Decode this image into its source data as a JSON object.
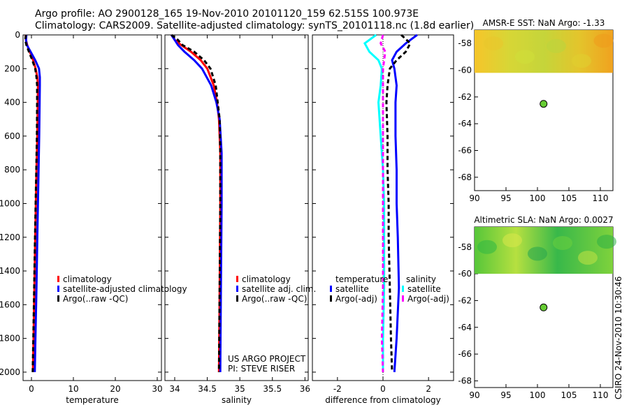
{
  "figure": {
    "title_line1": "Argo profile: AO 2900128_165 19-Nov-2010 20101120_159 62.515S 100.973E",
    "title_line2": "Climatology: CARS2009. Satellite-adjusted climatology: synTS_20101118.nc (1.8d earlier)",
    "credit": "CSIRO 24-Nov-2010 10:30:46",
    "project_line1": "US ARGO PROJECT",
    "project_line2": "PI: STEVE RISER"
  },
  "colors": {
    "climatology": "#ff0000",
    "satellite": "#0000ff",
    "argo": "#000000",
    "satellite_sal": "#00ffff",
    "argo_sal": "#ff00ff",
    "marker": "#66cc33"
  },
  "chart_data": [
    {
      "id": "temperature",
      "type": "line",
      "xlabel": "temperature",
      "xlim": [
        -2,
        31
      ],
      "ylim": [
        2050,
        0
      ],
      "xticks": [
        0,
        10,
        20,
        30
      ],
      "yticks": [
        0,
        200,
        400,
        600,
        800,
        1000,
        1200,
        1400,
        1600,
        1800,
        2000
      ],
      "legend": [
        "climatology",
        "satellite-adjusted climatology",
        "Argo(..raw -QC)"
      ],
      "legend_position": "lower-right",
      "series": [
        {
          "name": "climatology",
          "color": "#ff0000",
          "depth": [
            0,
            30,
            60,
            100,
            150,
            200,
            250,
            300,
            400,
            600,
            800,
            1000,
            1200,
            1500,
            1800,
            2000
          ],
          "values": [
            -1.4,
            -1.3,
            -1.0,
            -0.4,
            0.4,
            1.0,
            1.4,
            1.55,
            1.5,
            1.4,
            1.2,
            1.05,
            0.9,
            0.7,
            0.5,
            0.35
          ]
        },
        {
          "name": "satellite-adjusted climatology",
          "color": "#0000ff",
          "depth": [
            0,
            30,
            60,
            100,
            150,
            200,
            250,
            300,
            400,
            600,
            800,
            1000,
            1200,
            1500,
            1800,
            2000
          ],
          "values": [
            -1.2,
            -1.3,
            -1.1,
            -0.2,
            0.9,
            1.8,
            2.0,
            2.0,
            1.95,
            1.85,
            1.7,
            1.55,
            1.4,
            1.2,
            0.95,
            0.8
          ]
        },
        {
          "name": "Argo(..raw -QC)",
          "color": "#000000",
          "depth": [
            0,
            30,
            60,
            100,
            150,
            200,
            250,
            300,
            400,
            600,
            800,
            1000,
            1200,
            1500,
            1800,
            2000
          ],
          "values": [
            -1.3,
            -1.5,
            -1.2,
            -0.6,
            0.2,
            0.9,
            1.2,
            1.35,
            1.35,
            1.3,
            1.15,
            1.0,
            0.85,
            0.65,
            0.45,
            0.3
          ]
        }
      ]
    },
    {
      "id": "salinity",
      "type": "line",
      "xlabel": "salinity",
      "xlim": [
        33.85,
        36.05
      ],
      "ylim": [
        2050,
        0
      ],
      "xticks": [
        34,
        34.5,
        35,
        35.5,
        36
      ],
      "xticklabels": [
        "34",
        "34.5",
        "35",
        "35.5",
        "36"
      ],
      "legend": [
        "climatology",
        "satellite adj. clim.",
        "Argo(..raw -QC)"
      ],
      "legend_position": "lower-right",
      "series": [
        {
          "name": "climatology",
          "color": "#ff0000",
          "depth": [
            0,
            30,
            60,
            100,
            150,
            200,
            300,
            400,
            500,
            700,
            1000,
            1500,
            2000
          ],
          "values": [
            33.95,
            34.0,
            34.1,
            34.25,
            34.4,
            34.5,
            34.6,
            34.65,
            34.68,
            34.7,
            34.7,
            34.69,
            34.68
          ]
        },
        {
          "name": "satellite adj. clim.",
          "color": "#0000ff",
          "depth": [
            0,
            30,
            60,
            100,
            150,
            200,
            300,
            400,
            500,
            700,
            1000,
            1500,
            2000
          ],
          "values": [
            33.95,
            34.0,
            34.05,
            34.15,
            34.3,
            34.42,
            34.56,
            34.64,
            34.69,
            34.72,
            34.72,
            34.71,
            34.7
          ]
        },
        {
          "name": "Argo(..raw -QC)",
          "color": "#000000",
          "depth": [
            0,
            30,
            60,
            100,
            150,
            200,
            300,
            400,
            500,
            700,
            1000,
            1500,
            2000
          ],
          "values": [
            33.95,
            34.05,
            34.12,
            34.3,
            34.45,
            34.55,
            34.63,
            34.66,
            34.69,
            34.7,
            34.7,
            34.69,
            34.68
          ]
        }
      ]
    },
    {
      "id": "difference",
      "type": "line",
      "xlabel": "difference from climatology",
      "xlim": [
        -3.1,
        3.1
      ],
      "ylim": [
        2050,
        0
      ],
      "xticks": [
        -2,
        0,
        2
      ],
      "legend_temperature": [
        "temperature",
        "satellite",
        "Argo(-adj)"
      ],
      "legend_salinity": [
        "salinity",
        "satellite",
        "Argo(-adj)"
      ],
      "legend_position": "lower-center",
      "series": [
        {
          "name": "temperature satellite",
          "color": "#0000ff",
          "depth": [
            0,
            50,
            100,
            150,
            200,
            300,
            400,
            600,
            800,
            1000,
            1200,
            1500,
            1800,
            2000
          ],
          "values": [
            1.5,
            1.0,
            0.6,
            0.4,
            0.5,
            0.6,
            0.55,
            0.55,
            0.6,
            0.6,
            0.65,
            0.7,
            0.6,
            0.5
          ]
        },
        {
          "name": "temperature Argo(-adj)",
          "color": "#000000",
          "depth": [
            0,
            50,
            100,
            150,
            200,
            300,
            400,
            600,
            800,
            1000,
            1200,
            1500,
            1800,
            2000
          ],
          "values": [
            0.8,
            1.2,
            1.0,
            0.6,
            0.3,
            0.2,
            0.15,
            0.2,
            0.2,
            0.25,
            0.25,
            0.3,
            0.35,
            0.4
          ]
        },
        {
          "name": "salinity satellite",
          "color": "#00ffff",
          "depth": [
            0,
            50,
            100,
            150,
            200,
            300,
            400,
            600,
            800,
            1000,
            1200,
            1500,
            1800,
            2000
          ],
          "values": [
            -0.3,
            -0.8,
            -0.6,
            -0.2,
            -0.05,
            -0.1,
            -0.2,
            -0.1,
            0.0,
            0.05,
            0.05,
            0.05,
            0.0,
            0.0
          ]
        },
        {
          "name": "salinity Argo(-adj)",
          "color": "#ff00ff",
          "depth": [
            0,
            50,
            100,
            150,
            200,
            300,
            400,
            600,
            800,
            1000,
            1200,
            1500,
            1800,
            2000
          ],
          "values": [
            0.0,
            -0.1,
            0.1,
            0.05,
            0.0,
            0.0,
            0.0,
            0.0,
            0.0,
            0.0,
            0.0,
            0.0,
            -0.05,
            0.0
          ]
        }
      ]
    },
    {
      "id": "amsr_sst",
      "type": "heatmap",
      "title": "AMSR-E SST: NaN Argo: -1.33",
      "xlim": [
        90,
        112
      ],
      "ylim": [
        -69,
        -57
      ],
      "xticks": [
        90,
        95,
        100,
        105,
        110
      ],
      "yticks": [
        -58,
        -60,
        -62,
        -64,
        -66,
        -68
      ],
      "data_ylim": [
        -60.2,
        -57
      ],
      "marker": {
        "lon": 100.973,
        "lat": -62.515
      }
    },
    {
      "id": "altimetric_sla",
      "type": "heatmap",
      "title": "Altimetric SLA: NaN Argo: 0.0027",
      "xlim": [
        90,
        112
      ],
      "ylim": [
        -68.5,
        -56.5
      ],
      "xticks": [
        90,
        95,
        100,
        105,
        110
      ],
      "yticks": [
        -58,
        -60,
        -62,
        -64,
        -66,
        -68
      ],
      "data_ylim": [
        -60,
        -56.5
      ],
      "marker": {
        "lon": 100.973,
        "lat": -62.515
      }
    }
  ]
}
